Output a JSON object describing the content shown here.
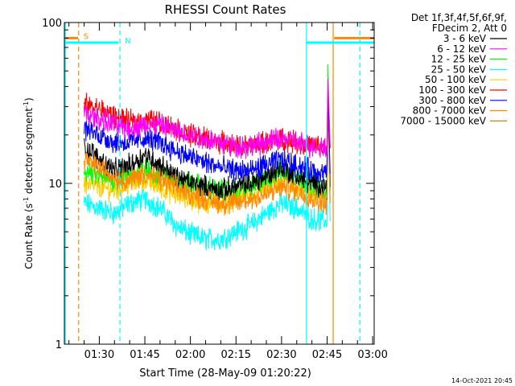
{
  "chart_data": {
    "type": "line",
    "title": "RHESSI Count Rates",
    "xlabel": "Start Time (28-May-09 01:20:22)",
    "ylabel": "Count Rate (s",
    "ylabel_sup": "-1",
    "ylabel_rest": " detector segment",
    "ylabel_sup2": "-1",
    "ylabel_end": ")",
    "yscale": "log",
    "ylim": [
      1,
      100
    ],
    "y_ticks": [
      {
        "value": 1,
        "label": "1"
      },
      {
        "value": 10,
        "label": "10"
      },
      {
        "value": 100,
        "label": "100"
      }
    ],
    "xlim_minutes": [
      1278.5,
      1380.5
    ],
    "x_ticks": [
      {
        "value": 1290,
        "label": "01:30"
      },
      {
        "value": 1305,
        "label": "01:45"
      },
      {
        "value": 1320,
        "label": "02:00"
      },
      {
        "value": 1335,
        "label": "02:15"
      },
      {
        "value": 1350,
        "label": "02:30"
      },
      {
        "value": 1365,
        "label": "02:45"
      },
      {
        "value": 1380,
        "label": "03:00"
      }
    ],
    "legend_header": [
      "Det 1f,3f,4f,5f,6f,9f,",
      "FDecim 2, Att 0"
    ],
    "legend_position": "right",
    "series": [
      {
        "name": "3 - 6 keV",
        "color": "#000000",
        "x": [
          1285,
          1290,
          1295,
          1300,
          1305,
          1310,
          1315,
          1320,
          1325,
          1330,
          1335,
          1340,
          1345,
          1350,
          1355,
          1360,
          1365,
          1366
        ],
        "values": [
          17,
          14,
          12,
          13,
          15,
          13,
          11,
          10,
          9.5,
          9,
          9.5,
          10,
          11,
          12.5,
          11,
          10,
          9.5,
          40
        ]
      },
      {
        "name": "6 - 12 keV",
        "color": "#ff00ff",
        "x": [
          1285,
          1290,
          1295,
          1300,
          1305,
          1310,
          1315,
          1320,
          1325,
          1330,
          1335,
          1340,
          1345,
          1350,
          1355,
          1360,
          1365,
          1366
        ],
        "values": [
          27,
          25,
          23,
          22,
          23,
          23,
          21,
          20,
          19,
          18,
          17,
          17,
          18,
          19,
          18,
          17,
          17,
          45
        ]
      },
      {
        "name": "12 - 25 keV",
        "color": "#00ff00",
        "x": [
          1285,
          1290,
          1295,
          1300,
          1305,
          1310,
          1315,
          1320,
          1325,
          1330,
          1335,
          1340,
          1345,
          1350,
          1355,
          1360,
          1365,
          1366
        ],
        "values": [
          12,
          11,
          10.5,
          11.5,
          12,
          11.5,
          10.5,
          10,
          9.5,
          9,
          9,
          9.5,
          10.5,
          12,
          11,
          10,
          9,
          55
        ]
      },
      {
        "name": "25 - 50 keV",
        "color": "#00ffff",
        "x": [
          1285,
          1290,
          1295,
          1300,
          1305,
          1310,
          1315,
          1320,
          1325,
          1330,
          1335,
          1340,
          1345,
          1350,
          1355,
          1360,
          1365,
          1366
        ],
        "values": [
          7.5,
          7,
          6.5,
          7.5,
          8,
          7,
          5.5,
          4.8,
          4.5,
          4.5,
          5,
          5.5,
          6.5,
          7.5,
          7,
          6,
          5.8,
          30
        ]
      },
      {
        "name": "50 - 100 keV",
        "color": "#ffcc00",
        "x": [
          1285,
          1290,
          1295,
          1300,
          1305,
          1310,
          1315,
          1320,
          1325,
          1330,
          1335,
          1340,
          1345,
          1350,
          1355,
          1360,
          1365,
          1366
        ],
        "values": [
          10,
          9.5,
          9,
          10,
          10.5,
          9.5,
          8.5,
          8,
          7.5,
          7.5,
          8,
          8.5,
          9.5,
          10,
          9,
          8.5,
          8,
          25
        ]
      },
      {
        "name": "100 - 300 keV",
        "color": "#ff0000",
        "x": [
          1285,
          1290,
          1295,
          1300,
          1305,
          1310,
          1315,
          1320,
          1325,
          1330,
          1335,
          1340,
          1345,
          1350,
          1355,
          1360,
          1365,
          1366
        ],
        "values": [
          31,
          29,
          26,
          24,
          25,
          24,
          22,
          20,
          19,
          18,
          17,
          17,
          18,
          19,
          18,
          17,
          16.5,
          40
        ]
      },
      {
        "name": "300 - 800 keV",
        "color": "#0000ff",
        "x": [
          1285,
          1290,
          1295,
          1300,
          1305,
          1310,
          1315,
          1320,
          1325,
          1330,
          1335,
          1340,
          1345,
          1350,
          1355,
          1360,
          1365,
          1366
        ],
        "values": [
          22,
          20,
          18,
          18,
          19,
          18,
          16,
          14.5,
          13.5,
          12.5,
          12,
          12,
          13,
          14,
          13,
          12,
          11.5,
          35
        ]
      },
      {
        "name": "800 - 7000 keV",
        "color": "#ff8800",
        "x": [
          1285,
          1290,
          1295,
          1300,
          1305,
          1310,
          1315,
          1320,
          1325,
          1330,
          1335,
          1340,
          1345,
          1350,
          1355,
          1360,
          1365,
          1366
        ],
        "values": [
          14,
          12.5,
          11,
          10.5,
          11.5,
          10.5,
          9.5,
          8.5,
          8,
          7.5,
          7.5,
          8,
          8.5,
          9.5,
          9,
          8,
          7.5,
          30
        ]
      },
      {
        "name": "7000 - 15000 keV",
        "color": "#cc8800",
        "x": [],
        "values": []
      }
    ],
    "annotations": [
      {
        "label": "S",
        "color": "#ff8800",
        "type": "dashed-vline",
        "x": 1283.2,
        "bar_start": 1278.5,
        "bar_end": 1283.0,
        "bar_level": 80
      },
      {
        "label": "N",
        "color": "#00ffff",
        "type": "dashed-vline",
        "x": 1296.8,
        "bar_start": 1278.5,
        "bar_end": 1296.3,
        "bar_level": 75
      },
      {
        "label": "",
        "color": "#00ffff",
        "type": "solid-vline",
        "x": 1358.2
      },
      {
        "label": "",
        "color": "#ff8800",
        "type": "solid-vline",
        "x": 1367.0,
        "bar_start": 1367.3,
        "bar_end": 1380.5,
        "bar_level": 80
      },
      {
        "label": "",
        "color": "#00ffff",
        "type": "dashed-vline",
        "x": 1375.8,
        "bar_start": 1358.2,
        "bar_end": 1380.5,
        "bar_level": 75
      }
    ],
    "grid": false
  },
  "footer": {
    "timestamp": "14-Oct-2021 20:45"
  }
}
